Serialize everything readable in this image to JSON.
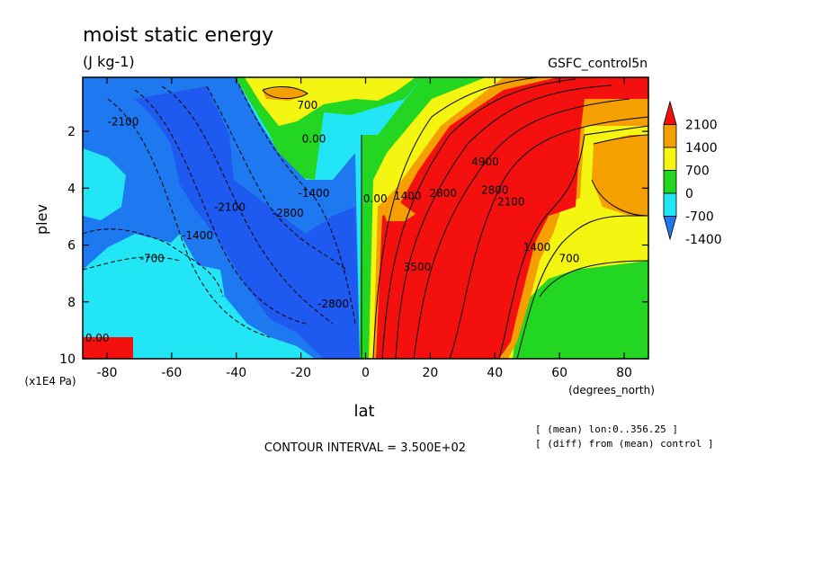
{
  "chart_data": {
    "type": "heatmap",
    "title": "moist static energy",
    "subtitle": "(J kg-1)",
    "experiment_label": "GSFC_control5n",
    "xlabel": "lat",
    "x_units": "(degrees_north)",
    "ylabel": "plev",
    "y_units": "(x1E4 Pa)",
    "x_range": [
      -87.5,
      87.5
    ],
    "y_range": [
      0.1,
      10
    ],
    "y_inverted": true,
    "x_ticks": [
      -80,
      -60,
      -40,
      -20,
      0,
      20,
      40,
      60,
      80
    ],
    "y_ticks": [
      2,
      4,
      6,
      8,
      10
    ],
    "contour_interval_text": "CONTOUR INTERVAL = 3.500E+02",
    "contour_interval": 350,
    "notes": [
      "[ (mean) lon:0..356.25 ]",
      "[ (diff) from (mean) control ]"
    ],
    "colorbar": {
      "labels": [
        "2100",
        "1400",
        "700",
        "0",
        "-700",
        "-1400"
      ],
      "levels": [
        -2100,
        -1400,
        -700,
        0,
        700,
        1400,
        2100
      ],
      "colors": [
        "#1e78f0",
        "#22e6f5",
        "#22d622",
        "#f5f512",
        "#f5a000",
        "#f51010"
      ]
    },
    "contour_labels": [
      {
        "text": "-2100",
        "lat": -75,
        "plev": 1.8
      },
      {
        "text": "700",
        "lat": -18,
        "plev": 1.2
      },
      {
        "text": "0.00",
        "lat": -16,
        "plev": 2.4
      },
      {
        "text": "-2100",
        "lat": -42,
        "plev": 4.8
      },
      {
        "text": "-2800",
        "lat": -24,
        "plev": 5.0
      },
      {
        "text": "-1400",
        "lat": -16,
        "plev": 4.3
      },
      {
        "text": "-1400",
        "lat": -52,
        "plev": 5.8
      },
      {
        "text": "-700",
        "lat": -66,
        "plev": 6.6
      },
      {
        "text": "0.00",
        "lat": -83,
        "plev": 9.4
      },
      {
        "text": "-2800",
        "lat": -10,
        "plev": 8.2
      },
      {
        "text": "0.00",
        "lat": 3,
        "plev": 4.5
      },
      {
        "text": "1400",
        "lat": 13,
        "plev": 4.4
      },
      {
        "text": "2800",
        "lat": 24,
        "plev": 4.3
      },
      {
        "text": "3500",
        "lat": 16,
        "plev": 6.9
      },
      {
        "text": "4900",
        "lat": 37,
        "plev": 3.2
      },
      {
        "text": "2800",
        "lat": 40,
        "plev": 4.2
      },
      {
        "text": "2100",
        "lat": 45,
        "plev": 4.6
      },
      {
        "text": "1400",
        "lat": 53,
        "plev": 6.2
      },
      {
        "text": "700",
        "lat": 63,
        "plev": 6.6
      }
    ]
  }
}
